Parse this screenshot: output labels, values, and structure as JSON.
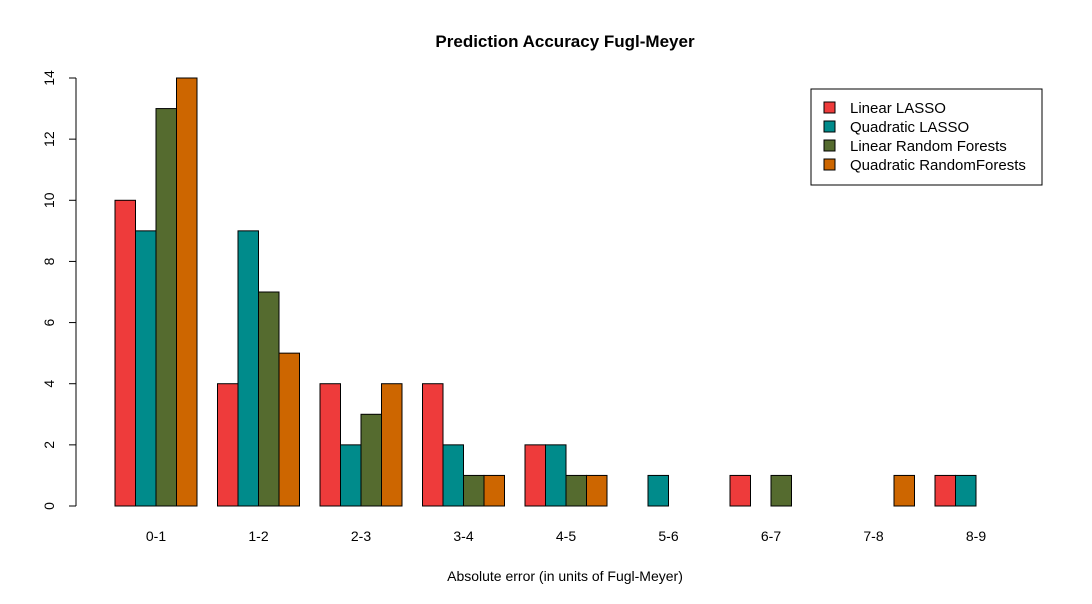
{
  "chart_data": {
    "type": "bar",
    "title": "Prediction Accuracy Fugl-Meyer",
    "xlabel": "Absolute error (in units of Fugl-Meyer)",
    "ylabel": "",
    "ylim": [
      0,
      14
    ],
    "yticks": [
      0,
      2,
      4,
      6,
      8,
      10,
      12,
      14
    ],
    "categories": [
      "0-1",
      "1-2",
      "2-3",
      "3-4",
      "4-5",
      "5-6",
      "6-7",
      "7-8",
      "8-9"
    ],
    "series": [
      {
        "name": "Linear LASSO",
        "color": "#EE3B3B",
        "values": [
          10,
          4,
          4,
          4,
          2,
          0,
          1,
          0,
          1
        ]
      },
      {
        "name": "Quadratic LASSO",
        "color": "#008B8B",
        "values": [
          9,
          9,
          2,
          2,
          2,
          1,
          0,
          0,
          1
        ]
      },
      {
        "name": "Linear Random Forests",
        "color": "#556B2F",
        "values": [
          13,
          7,
          3,
          1,
          1,
          0,
          1,
          0,
          0
        ]
      },
      {
        "name": "Quadratic RandomForests",
        "color": "#CD6600",
        "values": [
          14,
          5,
          4,
          1,
          1,
          0,
          0,
          1,
          0
        ]
      }
    ],
    "legend_position": "top-right",
    "grid": false
  }
}
